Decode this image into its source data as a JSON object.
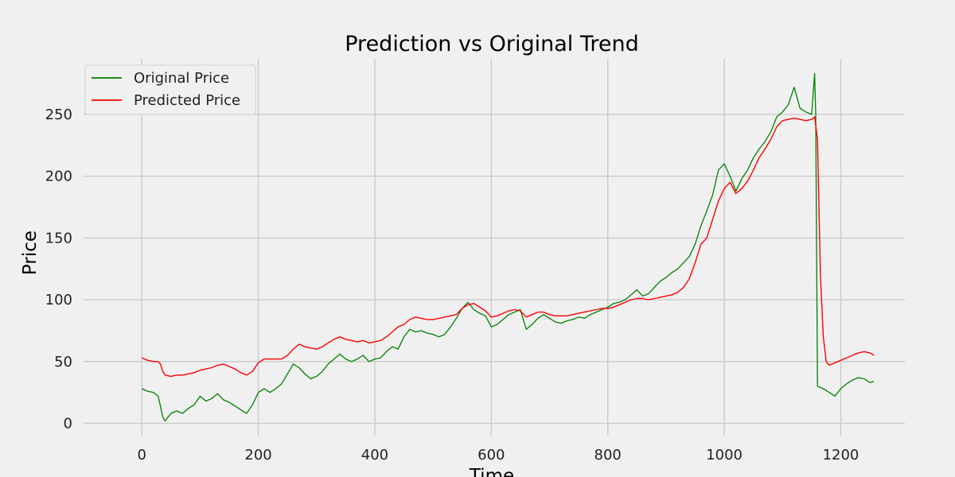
{
  "chart_data": {
    "type": "line",
    "title": "Prediction vs Original Trend",
    "xlabel": "Time",
    "ylabel": "Price",
    "xlim": [
      -100,
      1310
    ],
    "ylim": [
      -10,
      295
    ],
    "xticks": [
      0,
      200,
      400,
      600,
      800,
      1000,
      1200
    ],
    "yticks": [
      0,
      50,
      100,
      150,
      200,
      250
    ],
    "xtick_labels": [
      "0",
      "200",
      "400",
      "600",
      "800",
      "1000",
      "1200"
    ],
    "ytick_labels": [
      "0",
      "50",
      "100",
      "150",
      "200",
      "250"
    ],
    "grid": true,
    "legend_position": "top-left",
    "colors": {
      "background": "#f0f0f0",
      "original": "#008000",
      "predicted": "#ff0000",
      "grid": "#cbcbcb"
    },
    "series": [
      {
        "name": "Original Price",
        "color": "#008000",
        "x": [
          0,
          10,
          20,
          28,
          32,
          36,
          40,
          50,
          60,
          70,
          80,
          90,
          100,
          110,
          120,
          130,
          140,
          150,
          160,
          170,
          180,
          190,
          200,
          210,
          220,
          230,
          240,
          250,
          260,
          270,
          280,
          290,
          300,
          310,
          320,
          330,
          340,
          350,
          360,
          370,
          380,
          390,
          400,
          410,
          420,
          430,
          440,
          450,
          460,
          470,
          480,
          490,
          500,
          510,
          520,
          530,
          540,
          550,
          560,
          570,
          580,
          590,
          600,
          610,
          620,
          630,
          640,
          650,
          660,
          670,
          680,
          690,
          700,
          710,
          720,
          730,
          740,
          750,
          760,
          770,
          780,
          790,
          800,
          810,
          820,
          830,
          840,
          850,
          860,
          870,
          880,
          890,
          900,
          910,
          920,
          930,
          940,
          950,
          960,
          970,
          980,
          990,
          1000,
          1010,
          1020,
          1030,
          1040,
          1050,
          1060,
          1070,
          1080,
          1090,
          1100,
          1110,
          1120,
          1130,
          1140,
          1150,
          1155,
          1157,
          1160,
          1170,
          1180,
          1190,
          1200,
          1210,
          1220,
          1230,
          1240,
          1250,
          1257
        ],
        "y": [
          28,
          26,
          25,
          22,
          14,
          5,
          2,
          8,
          10,
          8,
          12,
          15,
          22,
          18,
          20,
          24,
          19,
          17,
          14,
          11,
          8,
          15,
          25,
          28,
          25,
          28,
          32,
          40,
          48,
          45,
          40,
          36,
          38,
          42,
          48,
          52,
          56,
          52,
          50,
          52,
          55,
          50,
          52,
          53,
          58,
          62,
          60,
          70,
          76,
          74,
          75,
          73,
          72,
          70,
          72,
          78,
          85,
          93,
          98,
          92,
          89,
          87,
          78,
          80,
          84,
          88,
          90,
          92,
          76,
          80,
          85,
          88,
          85,
          82,
          81,
          83,
          84,
          86,
          85,
          88,
          90,
          92,
          94,
          97,
          98,
          100,
          104,
          108,
          103,
          105,
          110,
          115,
          118,
          122,
          125,
          130,
          135,
          145,
          160,
          172,
          185,
          205,
          210,
          200,
          188,
          198,
          205,
          215,
          222,
          228,
          236,
          248,
          252,
          258,
          272,
          255,
          252,
          250,
          283,
          250,
          30,
          28,
          25,
          22,
          28,
          32,
          35,
          37,
          36,
          33,
          34
        ]
      },
      {
        "name": "Predicted Price",
        "color": "#ff0000",
        "x": [
          0,
          10,
          20,
          28,
          32,
          36,
          40,
          50,
          60,
          70,
          80,
          90,
          100,
          110,
          120,
          130,
          140,
          150,
          160,
          170,
          180,
          190,
          200,
          210,
          220,
          230,
          240,
          250,
          260,
          270,
          280,
          290,
          300,
          310,
          320,
          330,
          340,
          350,
          360,
          370,
          380,
          390,
          400,
          410,
          420,
          430,
          440,
          450,
          460,
          470,
          480,
          490,
          500,
          510,
          520,
          530,
          540,
          550,
          560,
          570,
          580,
          590,
          600,
          610,
          620,
          630,
          640,
          650,
          660,
          670,
          680,
          690,
          700,
          710,
          720,
          730,
          740,
          750,
          760,
          770,
          780,
          790,
          800,
          810,
          820,
          830,
          840,
          850,
          860,
          870,
          880,
          890,
          900,
          910,
          920,
          930,
          940,
          950,
          960,
          970,
          980,
          990,
          1000,
          1010,
          1020,
          1030,
          1040,
          1050,
          1060,
          1070,
          1080,
          1090,
          1100,
          1110,
          1120,
          1130,
          1140,
          1150,
          1155,
          1160,
          1165,
          1170,
          1175,
          1180,
          1190,
          1200,
          1210,
          1220,
          1230,
          1240,
          1250,
          1257
        ],
        "y": [
          53,
          51,
          50,
          50,
          48,
          42,
          39,
          38,
          39,
          39,
          40,
          41,
          43,
          44,
          45,
          47,
          48,
          46,
          44,
          41,
          39,
          42,
          49,
          52,
          52,
          52,
          52,
          55,
          60,
          64,
          62,
          61,
          60,
          62,
          65,
          68,
          70,
          68,
          67,
          66,
          67,
          65,
          66,
          67,
          70,
          74,
          78,
          80,
          84,
          86,
          85,
          84,
          84,
          85,
          86,
          87,
          88,
          93,
          96,
          97,
          94,
          91,
          86,
          87,
          89,
          91,
          92,
          91,
          86,
          88,
          90,
          90,
          88,
          87,
          87,
          87,
          88,
          89,
          90,
          91,
          92,
          93,
          93,
          94,
          96,
          98,
          100,
          101,
          101,
          100,
          101,
          102,
          103,
          104,
          106,
          110,
          117,
          130,
          145,
          150,
          165,
          180,
          190,
          195,
          186,
          190,
          196,
          205,
          215,
          222,
          230,
          240,
          245,
          246,
          247,
          246,
          245,
          246,
          248,
          230,
          120,
          70,
          50,
          47,
          49,
          51,
          53,
          55,
          57,
          58,
          57,
          55
        ]
      }
    ]
  }
}
